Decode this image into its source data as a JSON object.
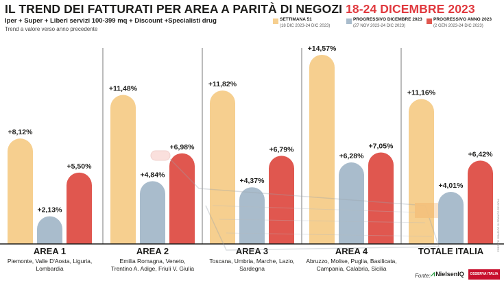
{
  "title_main": "IL TREND DEI FATTURATI PER AREA A PARITÀ DI NEGOZI",
  "title_date": "18-24 DICEMBRE 2023",
  "subtitle": "Iper + Super + Liberi servizi 100-399 mq + Discount +Specialisti drug",
  "subnote": "Trend a valore verso anno precedente",
  "legend": [
    {
      "label": "SETTIMANA 51",
      "sub": "(18 DIC 2023-24 DIC 2023)",
      "color": "#f6cf8f"
    },
    {
      "label": "PROGRESSIVO DICEMBRE 2023",
      "sub": "(27 NOV 2023-24 DIC 2023)",
      "color": "#a9bccc"
    },
    {
      "label": "PROGRESSIVO ANNO 2023",
      "sub": "(2 GEN 2023-24 DIC 2023)",
      "color": "#e0574f"
    }
  ],
  "source_label": "Fonte:",
  "nielsen_label": "NielsenIQ",
  "osservatorio_label": "OSSERVA ITALIA",
  "credit": "CREDITO GRAFICO DI FRANCO DE BONI",
  "chart_data": {
    "type": "bar",
    "categories": [
      "AREA 1",
      "AREA 2",
      "AREA 3",
      "AREA 4",
      "TOTALE ITALIA"
    ],
    "category_regions": [
      [
        "Piemonte, Valle D'Aosta, Liguria,",
        "Lombardia"
      ],
      [
        "Emilia Romagna, Veneto,",
        "Trentino A. Adige, Friuli V. Giulia"
      ],
      [
        "Toscana, Umbria, Marche, Lazio,",
        "Sardegna"
      ],
      [
        "Abruzzo, Molise, Puglia, Basilicata,",
        "Campania, Calabria, Sicilia"
      ],
      []
    ],
    "unit": "%",
    "series": [
      {
        "name": "SETTIMANA 51",
        "values": [
          8.12,
          11.48,
          11.82,
          14.57,
          11.16
        ],
        "labels": [
          "+8,12%",
          "+11,48%",
          "+11,82%",
          "+14,57%",
          "+11,16%"
        ],
        "color": "#f6cf8f"
      },
      {
        "name": "PROGRESSIVO DICEMBRE 2023",
        "values": [
          2.13,
          4.84,
          4.37,
          6.28,
          4.01
        ],
        "labels": [
          "+2,13%",
          "+4,84%",
          "+4,37%",
          "+6,28%",
          "+4,01%"
        ],
        "color": "#a9bccc"
      },
      {
        "name": "PROGRESSIVO ANNO 2023",
        "values": [
          5.5,
          6.98,
          6.79,
          7.05,
          6.42
        ],
        "labels": [
          "+5,50%",
          "+6,98%",
          "+6,79%",
          "+7,05%",
          "+6,42%"
        ],
        "color": "#e0574f"
      }
    ],
    "ylim": [
      0,
      15
    ],
    "grid": false,
    "legend_position": "top-right"
  }
}
